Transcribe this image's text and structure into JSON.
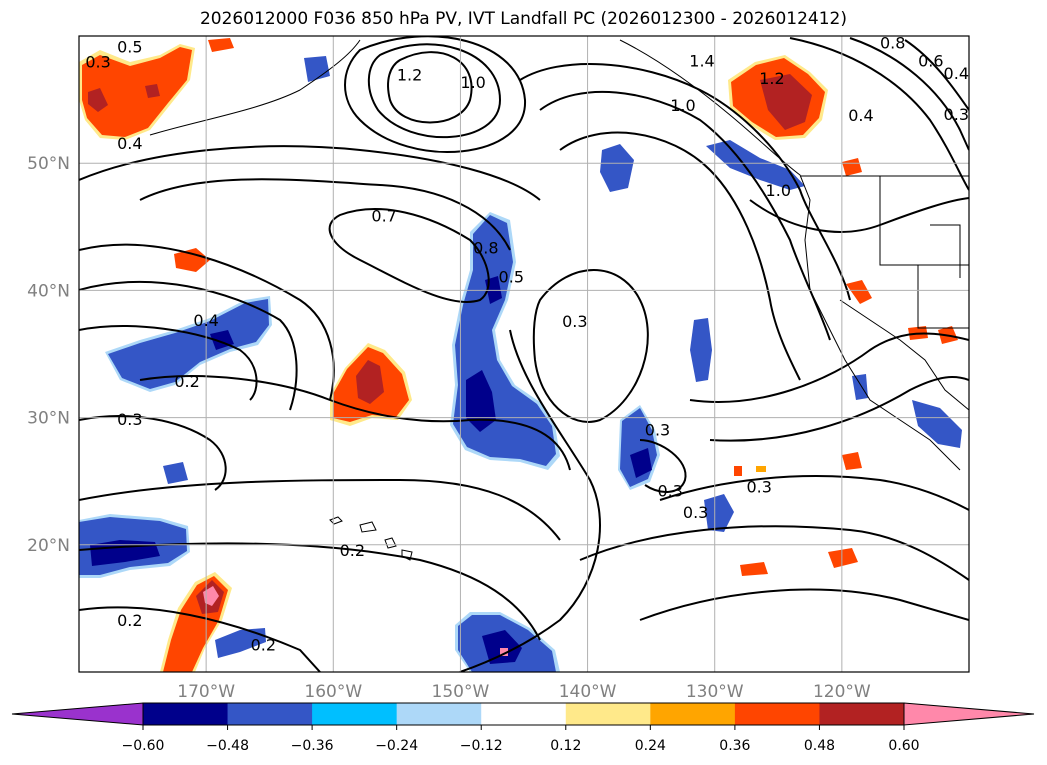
{
  "title": "2026012000 F036 850 hPa PV, IVT Landfall PC (2026012300 - 2026012412)",
  "map": {
    "type": "contour-map",
    "lon_range": [
      -180,
      -110
    ],
    "lat_range": [
      10,
      60
    ],
    "lon_ticks": [
      "170°W",
      "160°W",
      "150°W",
      "140°W",
      "130°W",
      "120°W"
    ],
    "lat_ticks": [
      "50°N",
      "40°N",
      "30°N",
      "20°N"
    ],
    "grid": true
  },
  "contour_labels": [
    {
      "text": "0.5",
      "lon": -176.0,
      "lat": 59.1
    },
    {
      "text": "1.2",
      "lon": -154.0,
      "lat": 56.9
    },
    {
      "text": "1.0",
      "lon": -149.0,
      "lat": 56.3
    },
    {
      "text": "1.4",
      "lon": -131.0,
      "lat": 58.0
    },
    {
      "text": "0.8",
      "lon": -116.0,
      "lat": 59.4
    },
    {
      "text": "0.6",
      "lon": -113.0,
      "lat": 58.0
    },
    {
      "text": "0.4",
      "lon": -111.0,
      "lat": 57.0
    },
    {
      "text": "0.3",
      "lon": -111.0,
      "lat": 53.8
    },
    {
      "text": "0.4",
      "lon": -118.5,
      "lat": 53.7
    },
    {
      "text": "1.2",
      "lon": -125.5,
      "lat": 56.6
    },
    {
      "text": "1.0",
      "lon": -132.5,
      "lat": 54.5
    },
    {
      "text": "1.0",
      "lon": -125.0,
      "lat": 47.8
    },
    {
      "text": "0.3",
      "lon": -178.5,
      "lat": 57.9
    },
    {
      "text": "0.4",
      "lon": -176.0,
      "lat": 51.5
    },
    {
      "text": "0.7",
      "lon": -156.0,
      "lat": 45.8
    },
    {
      "text": "0.8",
      "lon": -148.0,
      "lat": 43.3
    },
    {
      "text": "0.5",
      "lon": -146.0,
      "lat": 41.0
    },
    {
      "text": "0.3",
      "lon": -141.0,
      "lat": 37.5
    },
    {
      "text": "0.4",
      "lon": -170.0,
      "lat": 37.6
    },
    {
      "text": "0.2",
      "lon": -171.5,
      "lat": 32.8
    },
    {
      "text": "0.3",
      "lon": -176.0,
      "lat": 29.8
    },
    {
      "text": "0.3",
      "lon": -134.5,
      "lat": 29.0
    },
    {
      "text": "0.3",
      "lon": -133.5,
      "lat": 24.2
    },
    {
      "text": "0.3",
      "lon": -126.5,
      "lat": 24.5
    },
    {
      "text": "0.3",
      "lon": -131.5,
      "lat": 22.5
    },
    {
      "text": "0.2",
      "lon": -158.5,
      "lat": 19.5
    },
    {
      "text": "0.2",
      "lon": -176.0,
      "lat": 14.0
    },
    {
      "text": "0.2",
      "lon": -165.5,
      "lat": 12.1
    }
  ],
  "colorbar": {
    "levels": [
      -0.6,
      -0.48,
      -0.36,
      -0.24,
      -0.12,
      0.12,
      0.24,
      0.36,
      0.48,
      0.6
    ],
    "tick_labels": [
      "−0.60",
      "−0.48",
      "−0.36",
      "−0.24",
      "−0.12",
      "0.12",
      "0.24",
      "0.36",
      "0.48",
      "0.60"
    ],
    "under_color": "#9a32cd",
    "over_color": "#ff88aa",
    "colors": [
      "#00008b",
      "#3456c6",
      "#00bfff",
      "#add8f8",
      "#ffffff",
      "#ffe98a",
      "#ffa500",
      "#ff4500",
      "#b22222",
      "#ff88aa"
    ]
  },
  "shading_colors": {
    "neg1": "#add8f8",
    "neg2": "#00bfff",
    "neg3": "#3456c6",
    "neg4": "#00008b",
    "pos1": "#ffe98a",
    "pos2": "#ffa500",
    "pos3": "#ff4500",
    "pos4": "#b22222",
    "pos5": "#ff88aa"
  }
}
